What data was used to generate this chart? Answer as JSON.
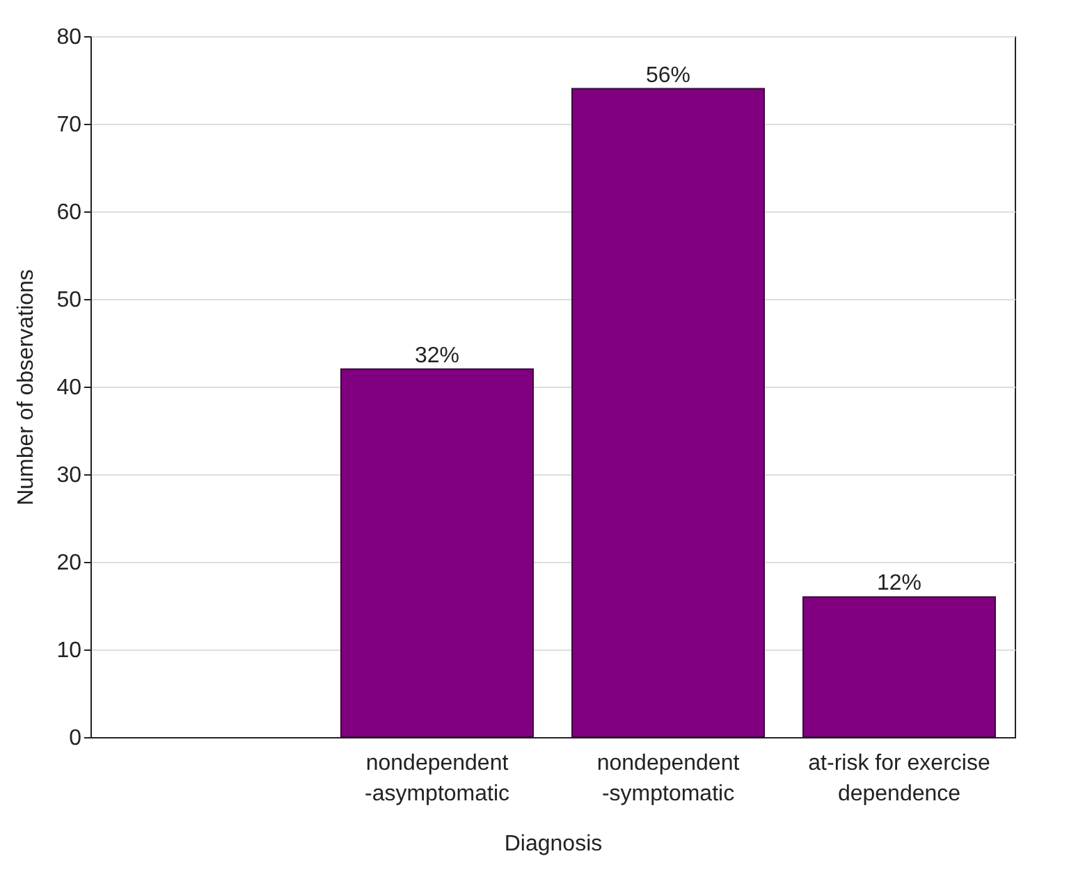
{
  "chart_data": {
    "type": "bar",
    "xlabel": "Diagnosis",
    "ylabel": "Number of observations",
    "categories": [
      null,
      "nondependent\n-asymptomatic",
      "nondependent\n-symptomatic",
      "at-risk for exercise\ndependence"
    ],
    "values": [
      null,
      42,
      74,
      16
    ],
    "annotations": [
      {
        "text": "32%",
        "x": "nondependent\n-asymptomatic",
        "y": 42
      },
      {
        "text": "56%",
        "x": "nondependent\n-symptomatic",
        "y": 74
      },
      {
        "text": "12%",
        "x": "at-risk for exercise\ndependence",
        "y": 16
      }
    ],
    "color": "#800080",
    "ylim": [
      0,
      80
    ],
    "yticks": [
      0,
      10,
      20,
      30,
      40,
      50,
      60,
      70,
      80
    ],
    "grid": "y"
  }
}
